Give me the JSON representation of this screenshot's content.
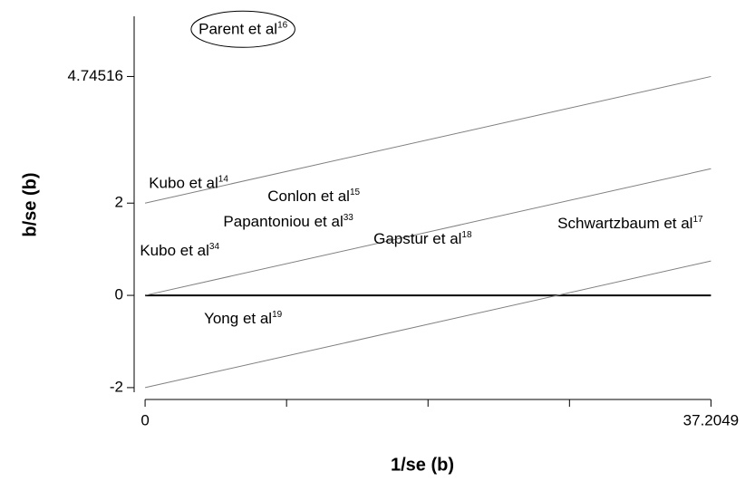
{
  "chart_data": {
    "type": "galbraith",
    "x_label": "1/se (b)",
    "y_label": "b/se (b)",
    "xlim": [
      -0.72,
      37.3
    ],
    "ylim": [
      -2.1,
      6.05
    ],
    "xticks": [
      0,
      37.2049
    ],
    "xminorticks": [
      9.3012,
      18.6025,
      27.9037
    ],
    "yticks": [
      -2,
      0,
      2,
      4.74516
    ],
    "lines": [
      {
        "x": [
          0,
          37.2049
        ],
        "values": [
          0,
          0
        ],
        "color": "#000000",
        "width": 2
      },
      {
        "x": [
          0,
          37.2049
        ],
        "values": [
          2,
          4.74516
        ],
        "color": "#808080",
        "width": 1
      },
      {
        "x": [
          0,
          37.2049
        ],
        "values": [
          0,
          2.74516
        ],
        "color": "#808080",
        "width": 1
      },
      {
        "x": [
          0,
          37.2049
        ],
        "values": [
          -2,
          0.74516
        ],
        "color": "#808080",
        "width": 1
      }
    ],
    "studies": [
      {
        "name": "Parent et al",
        "ref": "16",
        "x": 6.44,
        "y": 5.75,
        "circled": true
      },
      {
        "name": "Kubo et al",
        "ref": "14",
        "x": 2.86,
        "y": 2.41
      },
      {
        "name": "Conlon et al",
        "ref": "15",
        "x": 11.09,
        "y": 2.12
      },
      {
        "name": "Papantoniou et al",
        "ref": "33",
        "x": 9.42,
        "y": 1.57
      },
      {
        "name": "Kubo et al",
        "ref": "34",
        "x": 2.27,
        "y": 0.94
      },
      {
        "name": "Gapstur et al",
        "ref": "18",
        "x": 18.25,
        "y": 1.2
      },
      {
        "name": "Schwartzbaum et al",
        "ref": "17",
        "x": 31.9,
        "y": 1.53
      },
      {
        "name": "Yong et al",
        "ref": "19",
        "x": 6.44,
        "y": -0.53
      }
    ]
  }
}
